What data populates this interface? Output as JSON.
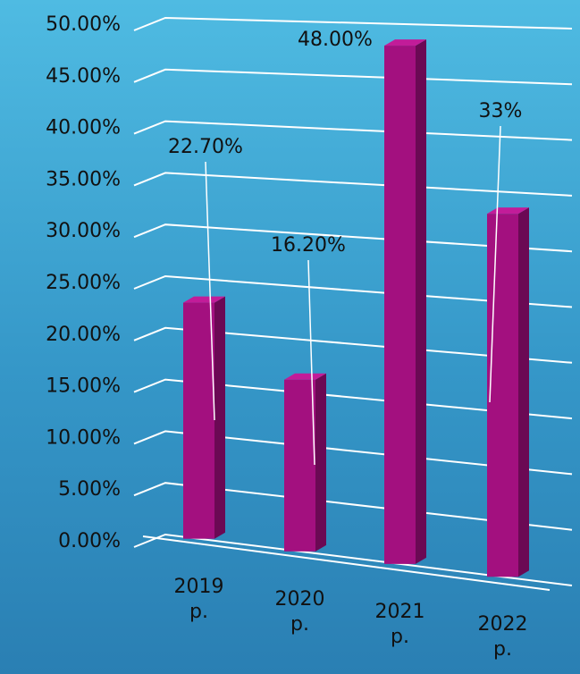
{
  "chart_data": {
    "type": "bar3d",
    "categories": [
      "2019 р.",
      "2020 р.",
      "2021 р.",
      "2022 р."
    ],
    "values": [
      22.7,
      16.2,
      48,
      33
    ],
    "value_labels": [
      "22.70%",
      "16.20%",
      "48.00%",
      "33%"
    ],
    "color": "#a3107f",
    "ylim": [
      0,
      50
    ],
    "yticks": [
      {
        "value": 0,
        "label": "0.00%"
      },
      {
        "value": 5,
        "label": "5.00%"
      },
      {
        "value": 10,
        "label": "10.00%"
      },
      {
        "value": 15,
        "label": "15.00%"
      },
      {
        "value": 20,
        "label": "20.00%"
      },
      {
        "value": 25,
        "label": "25.00%"
      },
      {
        "value": 30,
        "label": "30.00%"
      },
      {
        "value": 35,
        "label": "35.00%"
      },
      {
        "value": 40,
        "label": "40.00%"
      },
      {
        "value": 45,
        "label": "45.00%"
      },
      {
        "value": 50,
        "label": "50.00%"
      }
    ],
    "grid": true
  }
}
